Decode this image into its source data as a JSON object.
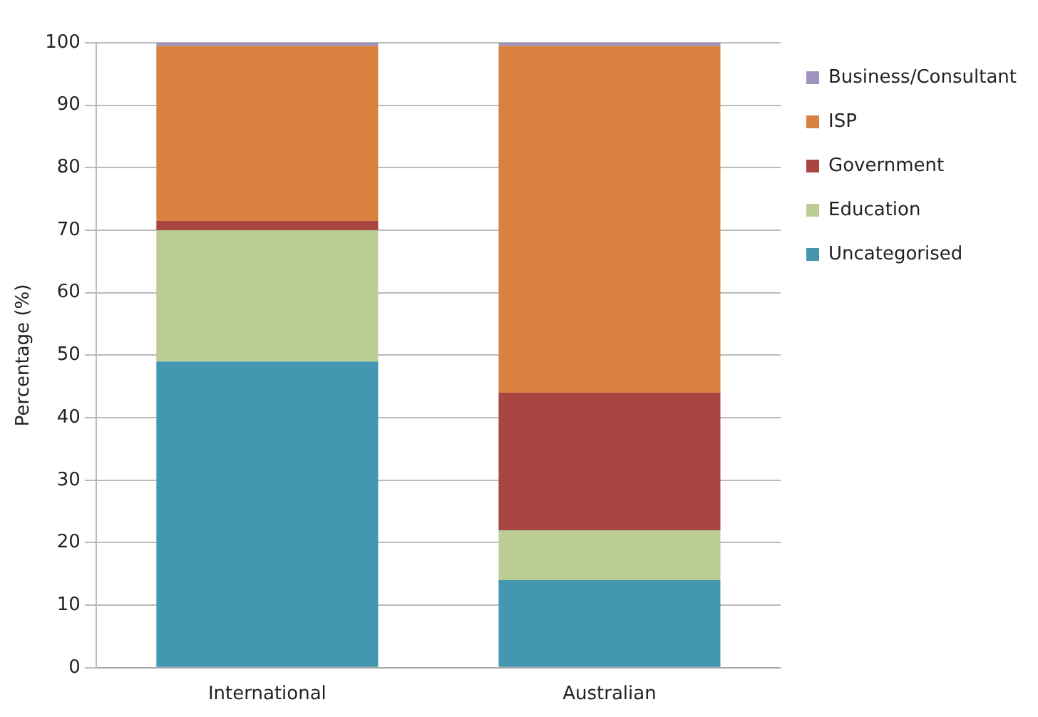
{
  "chart_data": {
    "type": "bar",
    "stacked": true,
    "ylabel": "Percentage (%)",
    "categories": [
      "International",
      "Australian"
    ],
    "series": [
      {
        "name": "Uncategorised",
        "color": "#4397b1",
        "values": [
          49,
          14
        ]
      },
      {
        "name": "Education",
        "color": "#bbcc95",
        "values": [
          21,
          8
        ]
      },
      {
        "name": "Government",
        "color": "#ab4542",
        "values": [
          1.5,
          22
        ]
      },
      {
        "name": "ISP",
        "color": "#d9813e",
        "values": [
          28,
          55.5
        ]
      },
      {
        "name": "Business/Consultant",
        "color": "#a193c0",
        "values": [
          0.5,
          0.5
        ]
      }
    ],
    "ylim": [
      0,
      100
    ],
    "yticks": [
      0,
      10,
      20,
      30,
      40,
      50,
      60,
      70,
      80,
      90,
      100
    ],
    "grid": "y",
    "legend": "top right"
  }
}
